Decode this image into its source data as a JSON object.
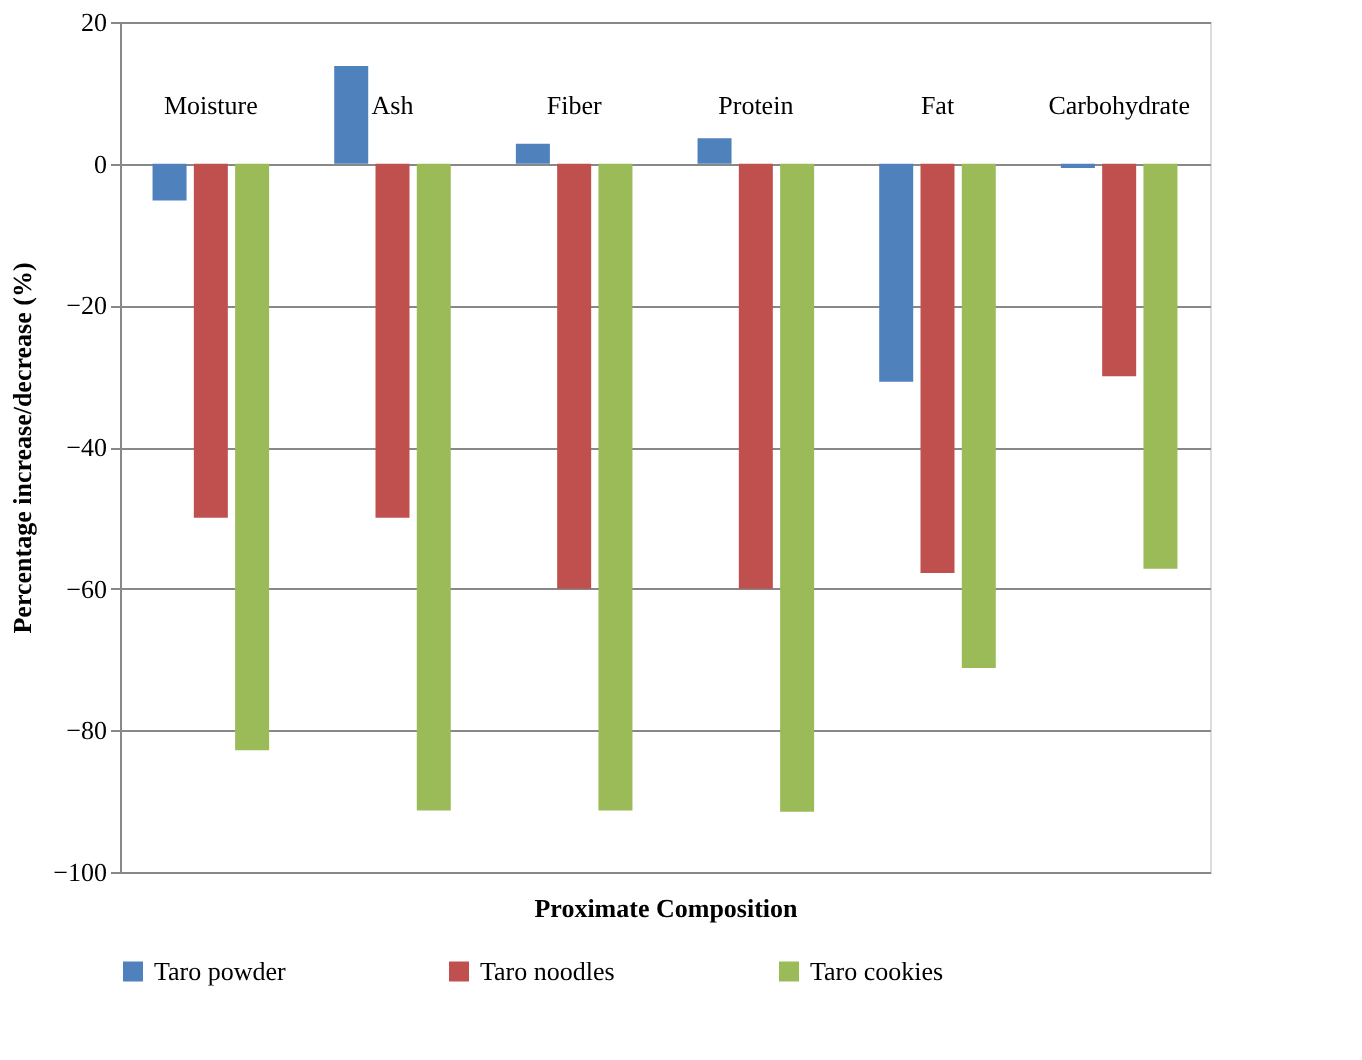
{
  "chart_data": {
    "type": "bar",
    "categories": [
      "Moisture",
      "Ash",
      "Fiber",
      "Protein",
      "Fat",
      "Carbohydrate"
    ],
    "xlabel": "Proximate Composition",
    "ylabel": "Percentage  increase/decrease (%)",
    "series": [
      {
        "name": "Taro powder",
        "color": "#4f81bd",
        "values": [
          -5.2,
          13.8,
          2.8,
          3.6,
          -30.8,
          -0.6
        ]
      },
      {
        "name": "Taro noodles",
        "color": "#c0504d",
        "values": [
          -50,
          -50,
          -60,
          -60,
          -57.8,
          -30
        ]
      },
      {
        "name": "Taro cookies",
        "color": "#9bbb59",
        "values": [
          -82.8,
          -91.3,
          -91.3,
          -91.5,
          -71.2,
          -57.2
        ]
      }
    ],
    "ylim": [
      -100,
      20
    ],
    "yticks": [
      -100,
      -80,
      -60,
      -40,
      -20,
      0,
      20
    ],
    "grid": "y",
    "legend": "bottom"
  }
}
